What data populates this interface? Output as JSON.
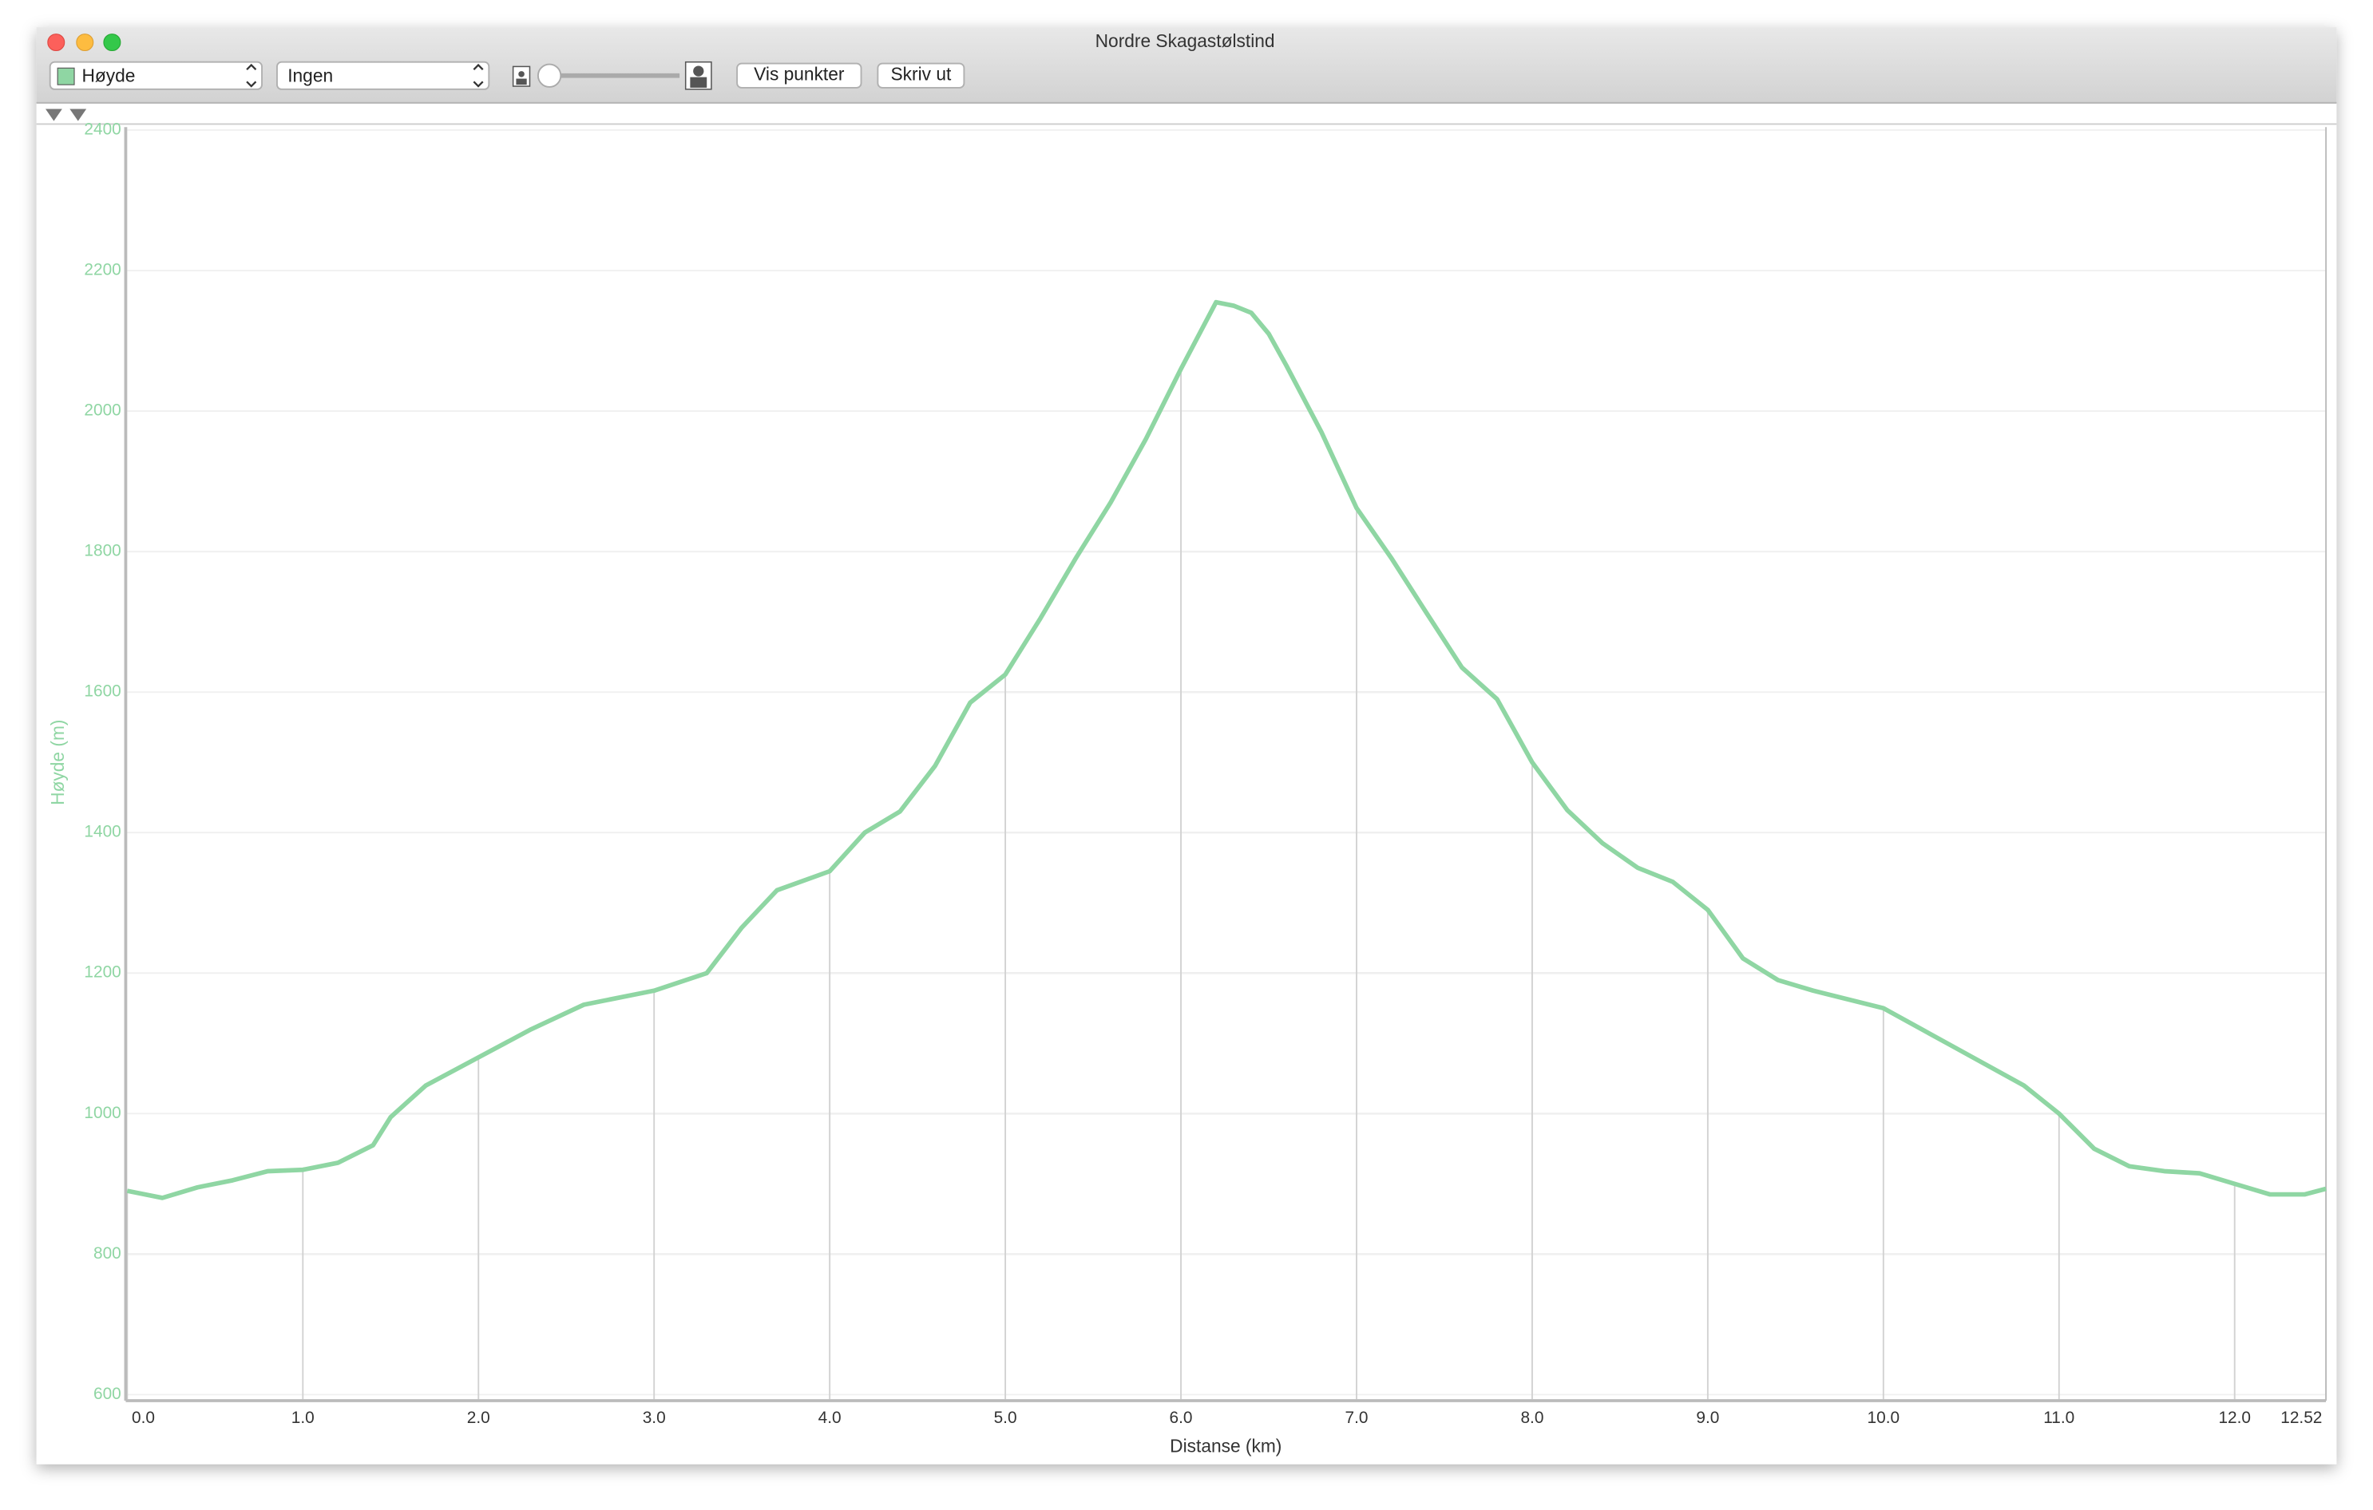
{
  "window": {
    "title": "Nordre Skagastølstind"
  },
  "toolbar": {
    "metric_select": "Høyde",
    "compare_select": "Ingen",
    "show_points_button": "Vis punkter",
    "print_button": "Skriv ut"
  },
  "chart_data": {
    "type": "line",
    "x_label": "Distanse (km)",
    "y_label": "Høyde (m)",
    "color": "#8fd6a3",
    "grid": true,
    "x": [
      0,
      0.2,
      0.4,
      0.6,
      0.8,
      1.0,
      1.2,
      1.4,
      1.5,
      1.7,
      2.0,
      2.3,
      2.6,
      3.0,
      3.3,
      3.5,
      3.7,
      4.0,
      4.2,
      4.4,
      4.6,
      4.8,
      5.0,
      5.2,
      5.4,
      5.6,
      5.8,
      6.0,
      6.2,
      6.3,
      6.4,
      6.5,
      6.6,
      6.8,
      7.0,
      7.2,
      7.4,
      7.6,
      7.8,
      8.0,
      8.2,
      8.4,
      8.6,
      8.8,
      9.0,
      9.2,
      9.4,
      9.6,
      10.0,
      10.4,
      10.8,
      11.0,
      11.2,
      11.4,
      11.6,
      11.8,
      12.0,
      12.2,
      12.4,
      12.52
    ],
    "values": [
      890,
      880,
      895,
      905,
      918,
      920,
      930,
      955,
      995,
      1040,
      1080,
      1120,
      1155,
      1175,
      1200,
      1265,
      1318,
      1345,
      1400,
      1430,
      1495,
      1585,
      1625,
      1705,
      1790,
      1870,
      1960,
      2060,
      2155,
      2150,
      2140,
      2110,
      2065,
      1970,
      1862,
      1790,
      1712,
      1635,
      1590,
      1500,
      1432,
      1385,
      1350,
      1330,
      1290,
      1221,
      1190,
      1175,
      1150,
      1095,
      1040,
      1000,
      950,
      925,
      918,
      915,
      900,
      885,
      885,
      893
    ],
    "xlim": [
      0,
      12.52
    ],
    "xticks": [
      {
        "value": 0,
        "label": "0.0"
      },
      {
        "value": 1,
        "label": "1.0"
      },
      {
        "value": 2,
        "label": "2.0"
      },
      {
        "value": 3,
        "label": "3.0"
      },
      {
        "value": 4,
        "label": "4.0"
      },
      {
        "value": 5,
        "label": "5.0"
      },
      {
        "value": 6,
        "label": "6.0"
      },
      {
        "value": 7,
        "label": "7.0"
      },
      {
        "value": 8,
        "label": "8.0"
      },
      {
        "value": 9,
        "label": "9.0"
      },
      {
        "value": 10,
        "label": "10.0"
      },
      {
        "value": 11,
        "label": "11.0"
      },
      {
        "value": 12,
        "label": "12.0"
      },
      12.52
    ],
    "ylim": [
      600,
      2400
    ],
    "yticks": [
      600,
      800,
      1000,
      1200,
      1400,
      1600,
      1800,
      2000,
      2200,
      2400
    ]
  }
}
